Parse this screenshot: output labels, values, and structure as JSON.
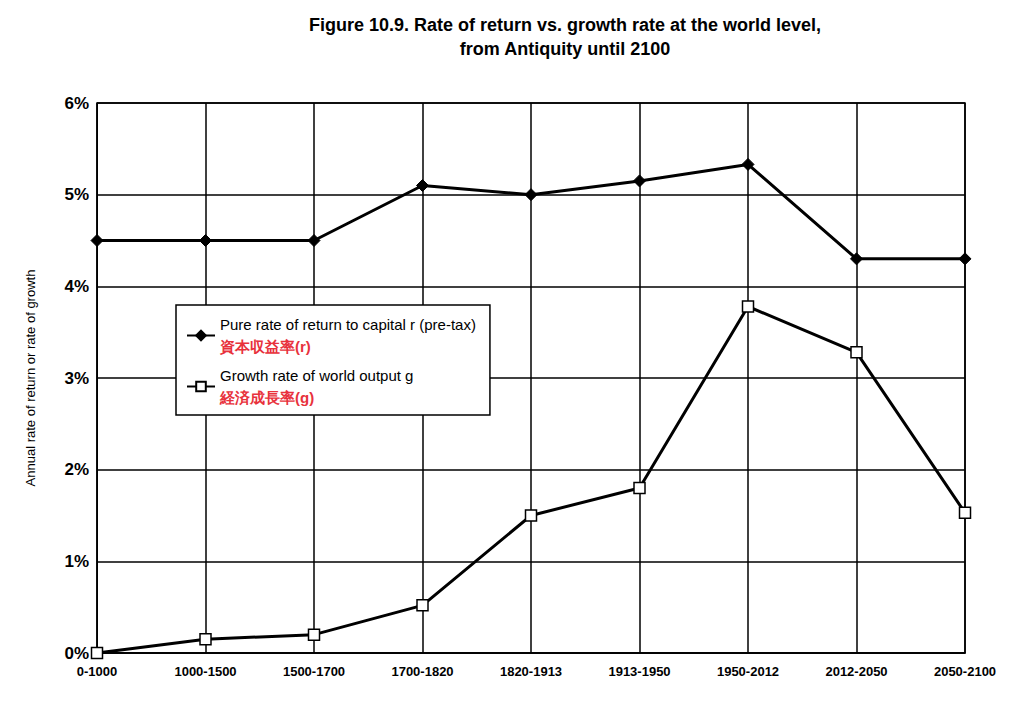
{
  "chart_data": {
    "type": "line",
    "title": "Figure 10.9. Rate of return vs. growth rate at the world level,\nfrom Antiquity until 2100",
    "y_label": "Annual rate of return or rate of growth",
    "categories": [
      "0-1000",
      "1000-1500",
      "1500-1700",
      "1700-1820",
      "1820-1913",
      "1913-1950",
      "1950-2012",
      "2012-2050",
      "2050-2100"
    ],
    "series": [
      {
        "name": "Pure rate of return to capital r (pre-tax)",
        "annotation": "資本収益率(r)",
        "annotation_color": "#e8323c",
        "color": "#000000",
        "marker": "diamond",
        "line_style": "solid",
        "values": [
          4.5,
          4.5,
          4.5,
          5.1,
          5.0,
          5.15,
          5.33,
          4.3,
          4.3
        ]
      },
      {
        "name": "Growth rate of world output g",
        "annotation": "経済成長率(g)",
        "annotation_color": "#e8323c",
        "color": "#000000",
        "marker": "square-open",
        "line_style": "solid",
        "values": [
          0.0,
          0.15,
          0.2,
          0.52,
          1.5,
          1.8,
          3.78,
          3.28,
          1.53
        ]
      }
    ],
    "ylim": [
      0,
      6
    ],
    "yticks": [
      {
        "value": 0,
        "label": "0%"
      },
      {
        "value": 1,
        "label": "1%"
      },
      {
        "value": 2,
        "label": "2%"
      },
      {
        "value": 3,
        "label": "3%"
      },
      {
        "value": 4,
        "label": "4%"
      },
      {
        "value": 5,
        "label": "5%"
      },
      {
        "value": 6,
        "label": "6%"
      }
    ],
    "grid": true,
    "legend": "left"
  }
}
